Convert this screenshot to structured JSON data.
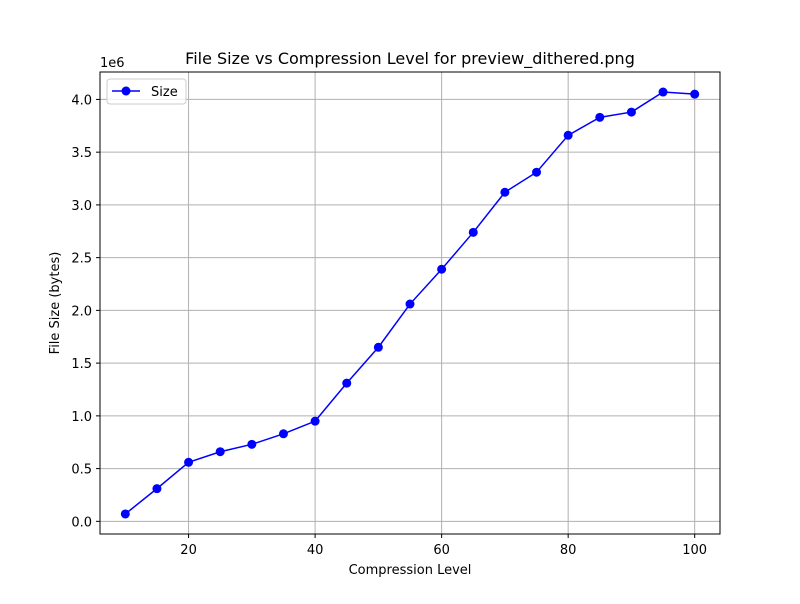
{
  "chart_data": {
    "type": "line",
    "title": "File Size vs Compression Level for preview_dithered.png",
    "xlabel": "Compression Level",
    "ylabel": "File Size (bytes)",
    "y_offset_label": "1e6",
    "xlim": [
      6,
      104
    ],
    "ylim": [
      -0.12,
      4.26
    ],
    "y_scale_factor": 1000000,
    "x_ticks": [
      20,
      40,
      60,
      80,
      100
    ],
    "x_tick_labels": [
      "20",
      "40",
      "60",
      "80",
      "100"
    ],
    "y_ticks": [
      0.0,
      0.5,
      1.0,
      1.5,
      2.0,
      2.5,
      3.0,
      3.5,
      4.0
    ],
    "y_tick_labels": [
      "0.0",
      "0.5",
      "1.0",
      "1.5",
      "2.0",
      "2.5",
      "3.0",
      "3.5",
      "4.0"
    ],
    "grid": true,
    "legend_position": "upper-left",
    "series": [
      {
        "name": "Size",
        "color": "#0000ff",
        "marker": "circle",
        "x": [
          10,
          15,
          20,
          25,
          30,
          35,
          40,
          45,
          50,
          55,
          60,
          65,
          70,
          75,
          80,
          85,
          90,
          95,
          100
        ],
        "y": [
          0.07,
          0.31,
          0.56,
          0.66,
          0.73,
          0.83,
          0.95,
          1.31,
          1.65,
          2.06,
          2.39,
          2.74,
          3.12,
          3.31,
          3.66,
          3.83,
          3.88,
          4.07,
          4.05
        ]
      }
    ]
  }
}
